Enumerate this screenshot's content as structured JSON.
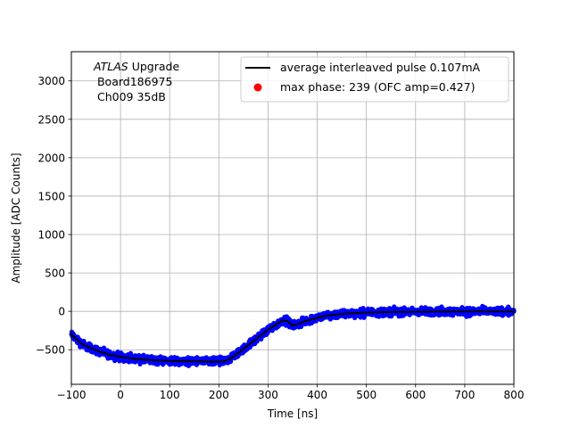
{
  "chart_data": {
    "type": "scatter",
    "xlabel": "Time [ns]",
    "ylabel": "Amplitude [ADC Counts]",
    "xlim": [
      -100,
      800
    ],
    "ylim": [
      -950,
      3380
    ],
    "xticks": [
      -100,
      0,
      100,
      200,
      300,
      400,
      500,
      600,
      700,
      800
    ],
    "yticks": [
      -500,
      0,
      500,
      1000,
      1500,
      2000,
      2500,
      3000
    ],
    "grid": true,
    "legend_position": "top-right",
    "annotation": {
      "italic": "ATLAS",
      "line1_rest": " Upgrade",
      "line2": " Board186975",
      "line3": " Ch009 35dB"
    },
    "series": [
      {
        "name": "average interleaved pulse 0.107mA",
        "kind": "line",
        "color": "#000000",
        "x": [
          -100,
          -80,
          -60,
          -40,
          -20,
          0,
          20,
          40,
          60,
          80,
          100,
          120,
          140,
          160,
          180,
          200,
          210,
          220,
          240,
          260,
          280,
          300,
          320,
          330,
          340,
          350,
          360,
          380,
          400,
          420,
          440,
          460,
          480,
          500,
          550,
          600,
          650,
          700,
          750,
          800
        ],
        "y": [
          -300,
          -420,
          -480,
          -530,
          -570,
          -590,
          -610,
          -625,
          -635,
          -640,
          -645,
          -648,
          -650,
          -652,
          -655,
          -655,
          -650,
          -630,
          -540,
          -440,
          -340,
          -240,
          -160,
          -115,
          -130,
          -185,
          -165,
          -120,
          -85,
          -55,
          -40,
          -30,
          -22,
          -15,
          -8,
          -5,
          -3,
          -2,
          -2,
          -2
        ]
      },
      {
        "name": "max phase: 239 (OFC amp=0.427)",
        "kind": "marker",
        "color": "#ff0000"
      },
      {
        "name": "samples",
        "kind": "scatter",
        "color": "#0000ff",
        "spread": 55
      }
    ]
  }
}
